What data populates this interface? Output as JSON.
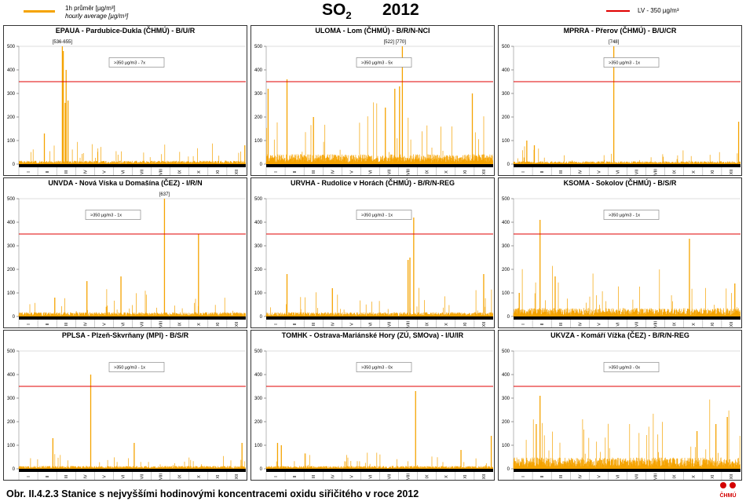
{
  "legend": {
    "hourly_cs": "1h průměr [µg/m³]",
    "hourly_en": "hourly average [µg/m³]",
    "limit": "LV - 350 µg/m³"
  },
  "title": {
    "pollutant": "SO",
    "subscript": "2",
    "year": "2012"
  },
  "caption": "Obr. II.4.2.3  Stanice s nejvyššími hodinovými koncentracemi oxidu siřičitého v roce 2012",
  "logo_text": "ČHMÚ",
  "colors": {
    "series": "#f5a300",
    "limit": "#e00000",
    "axis": "#000000"
  },
  "chart_data": [
    {
      "type": "line",
      "title": "EPAUA - Pardubice-Dukla (ČHMÚ) - B/U/R",
      "annotation": "[536-655]",
      "exceed_label": ">350 µg/m3 - 7x",
      "base": 12,
      "peaks": [
        [
          2.3,
          500
        ],
        [
          2.35,
          480
        ],
        [
          2.5,
          400
        ],
        [
          2.6,
          270
        ],
        [
          2.45,
          260
        ],
        [
          1.35,
          130
        ],
        [
          11.95,
          80
        ]
      ],
      "annot_x": 2.3
    },
    {
      "type": "line",
      "title": "ULOMA - Lom (ČHMÚ) - B/R/N-NCI",
      "annotation": "[522] [770]",
      "exceed_label": ">350 µg/m3 - 5x",
      "base": 35,
      "peaks": [
        [
          7.2,
          500
        ],
        [
          7.05,
          330
        ],
        [
          6.8,
          320
        ],
        [
          0.1,
          320
        ],
        [
          1.1,
          360
        ],
        [
          10.9,
          300
        ],
        [
          6.3,
          240
        ],
        [
          2.5,
          200
        ]
      ],
      "annot_x": 6.8
    },
    {
      "type": "line",
      "title": "MPRRA - Přerov (ČHMÚ) - B/U/CR",
      "annotation": "[748]",
      "exceed_label": ">350 µg/m3 - 1x",
      "base": 10,
      "peaks": [
        [
          5.3,
          500
        ],
        [
          11.9,
          180
        ],
        [
          0.7,
          100
        ],
        [
          1.1,
          80
        ]
      ],
      "annot_x": 5.3
    },
    {
      "type": "line",
      "title": "UNVDA - Nová Víska u Domašína (ČEZ) - I/R/N",
      "annotation": "[637]",
      "exceed_label": ">350 µg/m3 - 1x",
      "base": 15,
      "peaks": [
        [
          7.7,
          500
        ],
        [
          9.5,
          350
        ],
        [
          5.4,
          170
        ],
        [
          3.6,
          150
        ],
        [
          1.9,
          80
        ]
      ],
      "annot_x": 7.7
    },
    {
      "type": "line",
      "title": "URVHA - Rudolice v Horách (ČHMÚ) - B/R/N-REG",
      "annotation": "",
      "exceed_label": ">350 µg/m3 - 1x",
      "base": 15,
      "peaks": [
        [
          7.8,
          420
        ],
        [
          7.6,
          250
        ],
        [
          7.5,
          240
        ],
        [
          11.5,
          180
        ],
        [
          1.1,
          180
        ],
        [
          3.5,
          120
        ]
      ],
      "annot_x": 7.8
    },
    {
      "type": "line",
      "title": "KSOMA - Sokolov (ČHMÚ) - B/S/R",
      "annotation": "",
      "exceed_label": ">350 µg/m3 - 1x",
      "base": 30,
      "peaks": [
        [
          1.4,
          410
        ],
        [
          9.3,
          330
        ],
        [
          2.2,
          170
        ],
        [
          0.3,
          100
        ],
        [
          11.7,
          140
        ]
      ],
      "annot_x": 1.4
    },
    {
      "type": "line",
      "title": "PPLSA - Plzeň-Skvrňany (MPI) - B/S/R",
      "annotation": "",
      "exceed_label": ">350 µg/m3 - 1x",
      "base": 10,
      "peaks": [
        [
          3.8,
          400
        ],
        [
          1.8,
          130
        ],
        [
          6.1,
          110
        ],
        [
          11.8,
          110
        ]
      ],
      "annot_x": 3.8
    },
    {
      "type": "line",
      "title": "TOMHK - Ostrava-Mariánské Hory (ZÚ, SMOva) - I/U/IR",
      "annotation": "",
      "exceed_label": ">350 µg/m3 - 0x",
      "base": 10,
      "peaks": [
        [
          7.9,
          330
        ],
        [
          0.6,
          110
        ],
        [
          0.8,
          100
        ],
        [
          11.9,
          140
        ],
        [
          10.3,
          80
        ]
      ],
      "annot_x": 7.9
    },
    {
      "type": "line",
      "title": "UKVZA - Komáří Vížka (ČEZ) - B/R/N-REG",
      "annotation": "",
      "exceed_label": ">350 µg/m3 - 0x",
      "base": 40,
      "peaks": [
        [
          1.4,
          310
        ],
        [
          1.2,
          190
        ],
        [
          11.3,
          220
        ],
        [
          10.7,
          190
        ],
        [
          9.7,
          160
        ]
      ],
      "annot_x": 1.4
    }
  ],
  "axes": {
    "ylim": [
      0,
      500
    ],
    "yticks": [
      "0",
      "100",
      "200",
      "300",
      "400",
      "500"
    ],
    "limit": 350,
    "months": [
      "I",
      "II",
      "III",
      "IV",
      "V",
      "VI",
      "VII",
      "VIII",
      "IX",
      "X",
      "XI",
      "XII"
    ]
  }
}
